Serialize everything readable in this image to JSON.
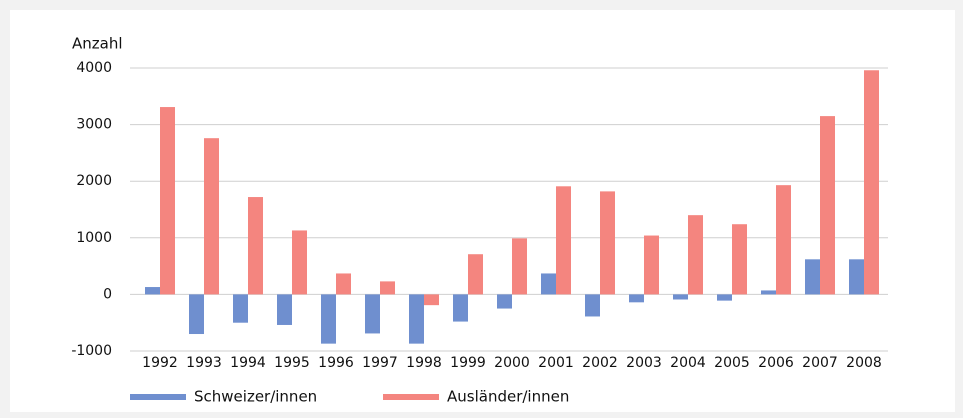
{
  "chart_data": {
    "type": "bar",
    "ylabel": "Anzahl",
    "categories": [
      "1992",
      "1993",
      "1994",
      "1995",
      "1996",
      "1997",
      "1998",
      "1999",
      "2000",
      "2001",
      "2002",
      "2003",
      "2004",
      "2005",
      "2006",
      "2007",
      "2008"
    ],
    "series": [
      {
        "name": "Schweizer/innen",
        "color": "#6f8fcf",
        "values": [
          130,
          -700,
          -500,
          -540,
          -870,
          -690,
          -870,
          -480,
          -250,
          370,
          -390,
          -140,
          -90,
          -110,
          70,
          620,
          620
        ]
      },
      {
        "name": "Ausländer/innen",
        "color": "#f4857f",
        "values": [
          3310,
          2760,
          1720,
          1130,
          370,
          230,
          -190,
          710,
          990,
          1910,
          1820,
          1040,
          1400,
          1240,
          1930,
          3150,
          3960
        ]
      }
    ],
    "ylim": [
      -1000,
      4000
    ],
    "yticks": [
      -1000,
      0,
      1000,
      2000,
      3000,
      4000
    ],
    "grid": true,
    "legend": "bottom"
  }
}
